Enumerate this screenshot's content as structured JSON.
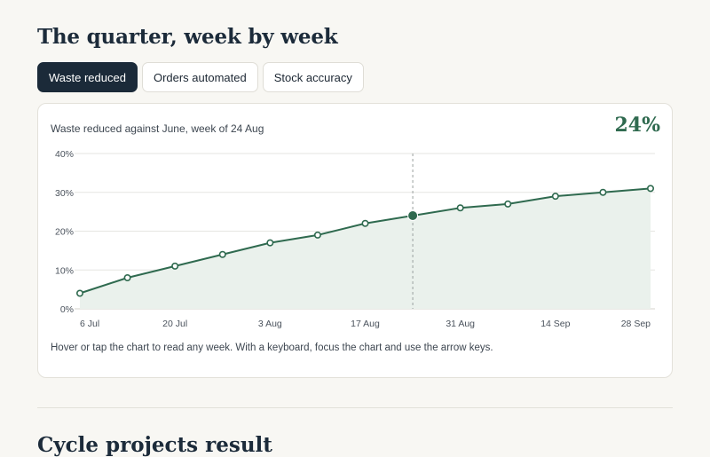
{
  "page": {
    "title": "The quarter, week by week",
    "next_section_title": "Cycle projects result"
  },
  "tabs": [
    {
      "label": "Waste reduced",
      "active": true
    },
    {
      "label": "Orders automated",
      "active": false
    },
    {
      "label": "Stock accuracy",
      "active": false
    }
  ],
  "chart_card": {
    "caption": "Waste reduced against June, week of 24 Aug",
    "selected_value": "24%",
    "hint": "Hover or tap the chart to read any week. With a keyboard, focus the chart and use the arrow keys."
  },
  "colors": {
    "accent": "#2f6a4f",
    "area_fill": "#eaf1ec",
    "grid": "#e6e6e2",
    "active_tab_bg": "#1b2a39"
  },
  "chart_data": {
    "type": "line",
    "x": [
      "6 Jul",
      "13 Jul",
      "20 Jul",
      "27 Jul",
      "3 Aug",
      "10 Aug",
      "17 Aug",
      "24 Aug",
      "31 Aug",
      "7 Sep",
      "14 Sep",
      "21 Sep",
      "28 Sep"
    ],
    "x_tick_labels": [
      "6 Jul",
      "20 Jul",
      "3 Aug",
      "17 Aug",
      "31 Aug",
      "14 Sep",
      "28 Sep"
    ],
    "series": [
      {
        "values": [
          4,
          8,
          11,
          14,
          17,
          19,
          22,
          24,
          26,
          27,
          29,
          30,
          31
        ]
      }
    ],
    "y_tick_labels": [
      "0%",
      "10%",
      "20%",
      "30%",
      "40%"
    ],
    "ylim": [
      0,
      40
    ],
    "y_unit": "%",
    "highlighted_index": 7,
    "grid": true,
    "area_fill": true
  }
}
